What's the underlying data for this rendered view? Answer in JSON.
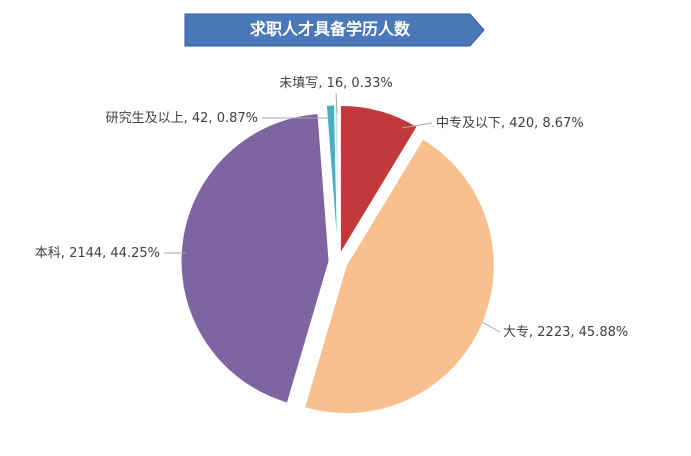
{
  "chart_data": {
    "type": "pie",
    "title": "求职人才具备学历人数",
    "categories": [
      "中专及以下",
      "大专",
      "本科",
      "研究生及以上",
      "未填写"
    ],
    "counts": [
      420,
      2223,
      2144,
      42,
      16
    ],
    "values": [
      8.67,
      45.88,
      44.25,
      0.87,
      0.33
    ],
    "value_labels": [
      "8.67%",
      "45.88%",
      "44.25%",
      "0.87%",
      "0.33%"
    ],
    "colors": [
      "#c0393b",
      "#f9c08f",
      "#8064a2",
      "#4bacc6",
      "#d9d9d9"
    ]
  }
}
